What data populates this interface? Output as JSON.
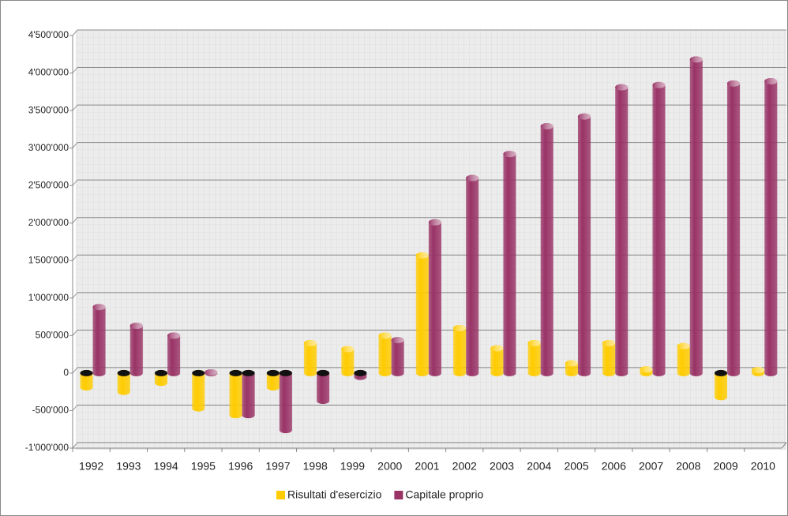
{
  "chart_data": {
    "type": "bar",
    "categories": [
      "1992",
      "1993",
      "1994",
      "1995",
      "1996",
      "1997",
      "1998",
      "1999",
      "2000",
      "2001",
      "2002",
      "2003",
      "2004",
      "2005",
      "2006",
      "2007",
      "2008",
      "2009",
      "2010"
    ],
    "series": [
      {
        "name": "Risultati d'esercizio",
        "color": "#ffcc00",
        "values": [
          -190000,
          -250000,
          -130000,
          -470000,
          -560000,
          -190000,
          400000,
          320000,
          500000,
          1570000,
          600000,
          330000,
          400000,
          130000,
          400000,
          50000,
          360000,
          -320000,
          40000
        ]
      },
      {
        "name": "Capitale proprio",
        "color": "#993366",
        "values": [
          880000,
          630000,
          500000,
          10000,
          -560000,
          -760000,
          -370000,
          -50000,
          440000,
          2010000,
          2600000,
          2920000,
          3290000,
          3420000,
          3810000,
          3840000,
          4180000,
          3860000,
          3890000
        ]
      }
    ],
    "ylim": [
      -1000000,
      4500000
    ],
    "yticks": [
      {
        "value": -1000000,
        "label": "-1'000'000"
      },
      {
        "value": -500000,
        "label": "-500'000"
      },
      0,
      {
        "value": 500000,
        "label": "500'000"
      },
      {
        "value": 1000000,
        "label": "1'000'000"
      },
      {
        "value": 1500000,
        "label": "1'500'000"
      },
      {
        "value": 2000000,
        "label": "2'000'000"
      },
      {
        "value": 2500000,
        "label": "2'500'000"
      },
      {
        "value": 3000000,
        "label": "3'000'000"
      },
      {
        "value": 3500000,
        "label": "3'500'000"
      },
      {
        "value": 4000000,
        "label": "4'000'000"
      },
      {
        "value": 4500000,
        "label": "4'500'000"
      }
    ],
    "grid": true,
    "legend": "bottom"
  }
}
